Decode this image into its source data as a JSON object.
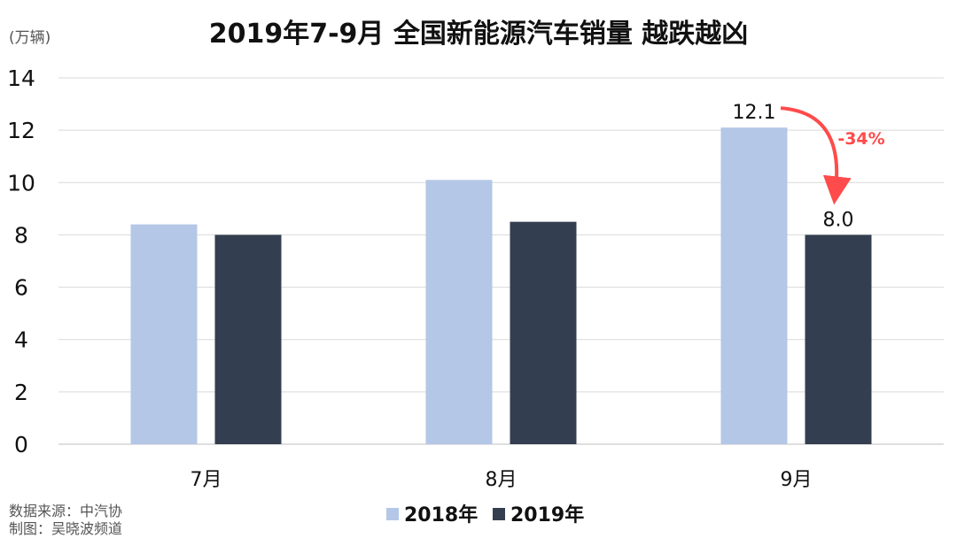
{
  "chart_data": {
    "type": "bar",
    "title": "2019年7-9月 全国新能源汽车销量 越跌越凶",
    "unit_label": "(万辆)",
    "categories": [
      "7月",
      "8月",
      "9月"
    ],
    "series": [
      {
        "name": "2018年",
        "color": "#b4c7e7",
        "values": [
          8.4,
          10.1,
          12.1
        ]
      },
      {
        "name": "2019年",
        "color": "#333f50",
        "values": [
          8.0,
          8.5,
          8.0
        ]
      }
    ],
    "ylim": [
      0,
      14
    ],
    "yticks": [
      "0",
      "2",
      "4",
      "6",
      "8",
      "10",
      "12",
      "14"
    ],
    "grid": true,
    "legend_position": "bottom",
    "data_labels": [
      {
        "series": 0,
        "category": 2,
        "text": "12.1"
      },
      {
        "series": 1,
        "category": 2,
        "text": "8.0"
      }
    ],
    "annotation": {
      "text": "-34%",
      "color": "#ff4b4b"
    }
  },
  "source_lines": [
    "数据来源：中汽协",
    "制图：吴晓波频道"
  ]
}
